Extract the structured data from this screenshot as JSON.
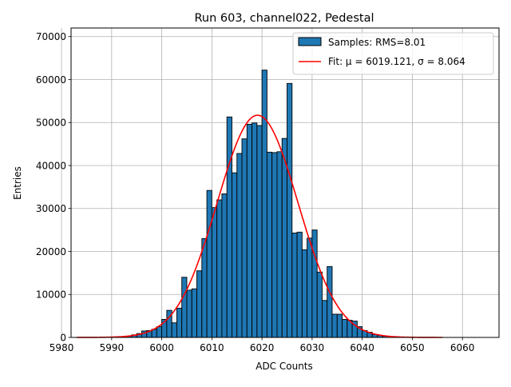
{
  "chart_data": {
    "type": "bar",
    "title": "Run 603, channel022, Pedestal",
    "xlabel": "ADC Counts",
    "ylabel": "Entries",
    "xlim": [
      5981.9,
      6067.3
    ],
    "ylim": [
      0,
      72000
    ],
    "xticks": [
      5980,
      5990,
      6000,
      6010,
      6020,
      6030,
      6040,
      6050,
      6060
    ],
    "yticks": [
      0,
      10000,
      20000,
      30000,
      40000,
      50000,
      60000,
      70000
    ],
    "grid": true,
    "legend_position": "top-right",
    "histogram": {
      "name": "Samples: RMS=8.01",
      "bin_width": 1,
      "bar_color": "#1f77b4",
      "edge_color": "#000000",
      "bins": [
        [
          5993,
          300
        ],
        [
          5994,
          600
        ],
        [
          5995,
          900
        ],
        [
          5996,
          1500
        ],
        [
          5997,
          1600
        ],
        [
          5998,
          1900
        ],
        [
          5999,
          2500
        ],
        [
          6000,
          4200
        ],
        [
          6001,
          6300
        ],
        [
          6002,
          3400
        ],
        [
          6003,
          6800
        ],
        [
          6004,
          14000
        ],
        [
          6005,
          11000
        ],
        [
          6006,
          11300
        ],
        [
          6007,
          15500
        ],
        [
          6008,
          23000
        ],
        [
          6009,
          34200
        ],
        [
          6010,
          30200
        ],
        [
          6011,
          32000
        ],
        [
          6012,
          33400
        ],
        [
          6013,
          51300
        ],
        [
          6014,
          38300
        ],
        [
          6015,
          42800
        ],
        [
          6016,
          46200
        ],
        [
          6017,
          49600
        ],
        [
          6018,
          49900
        ],
        [
          6019,
          49300
        ],
        [
          6020,
          62200
        ],
        [
          6021,
          43100
        ],
        [
          6022,
          43000
        ],
        [
          6023,
          43200
        ],
        [
          6024,
          46300
        ],
        [
          6025,
          59100
        ],
        [
          6026,
          24300
        ],
        [
          6027,
          24500
        ],
        [
          6028,
          20400
        ],
        [
          6029,
          23100
        ],
        [
          6030,
          25000
        ],
        [
          6031,
          15200
        ],
        [
          6032,
          8600
        ],
        [
          6033,
          16500
        ],
        [
          6034,
          5400
        ],
        [
          6035,
          5400
        ],
        [
          6036,
          4200
        ],
        [
          6037,
          4000
        ],
        [
          6038,
          3800
        ],
        [
          6039,
          2500
        ],
        [
          6040,
          1600
        ],
        [
          6041,
          1200
        ],
        [
          6042,
          700
        ],
        [
          6043,
          500
        ],
        [
          6044,
          300
        ]
      ]
    },
    "fit": {
      "name": "Fit: μ = 6019.121, σ = 8.064",
      "mu": 6019.121,
      "sigma": 8.064,
      "amplitude": 51700,
      "x_range": [
        5983,
        6056
      ],
      "color": "#ff0000"
    }
  }
}
